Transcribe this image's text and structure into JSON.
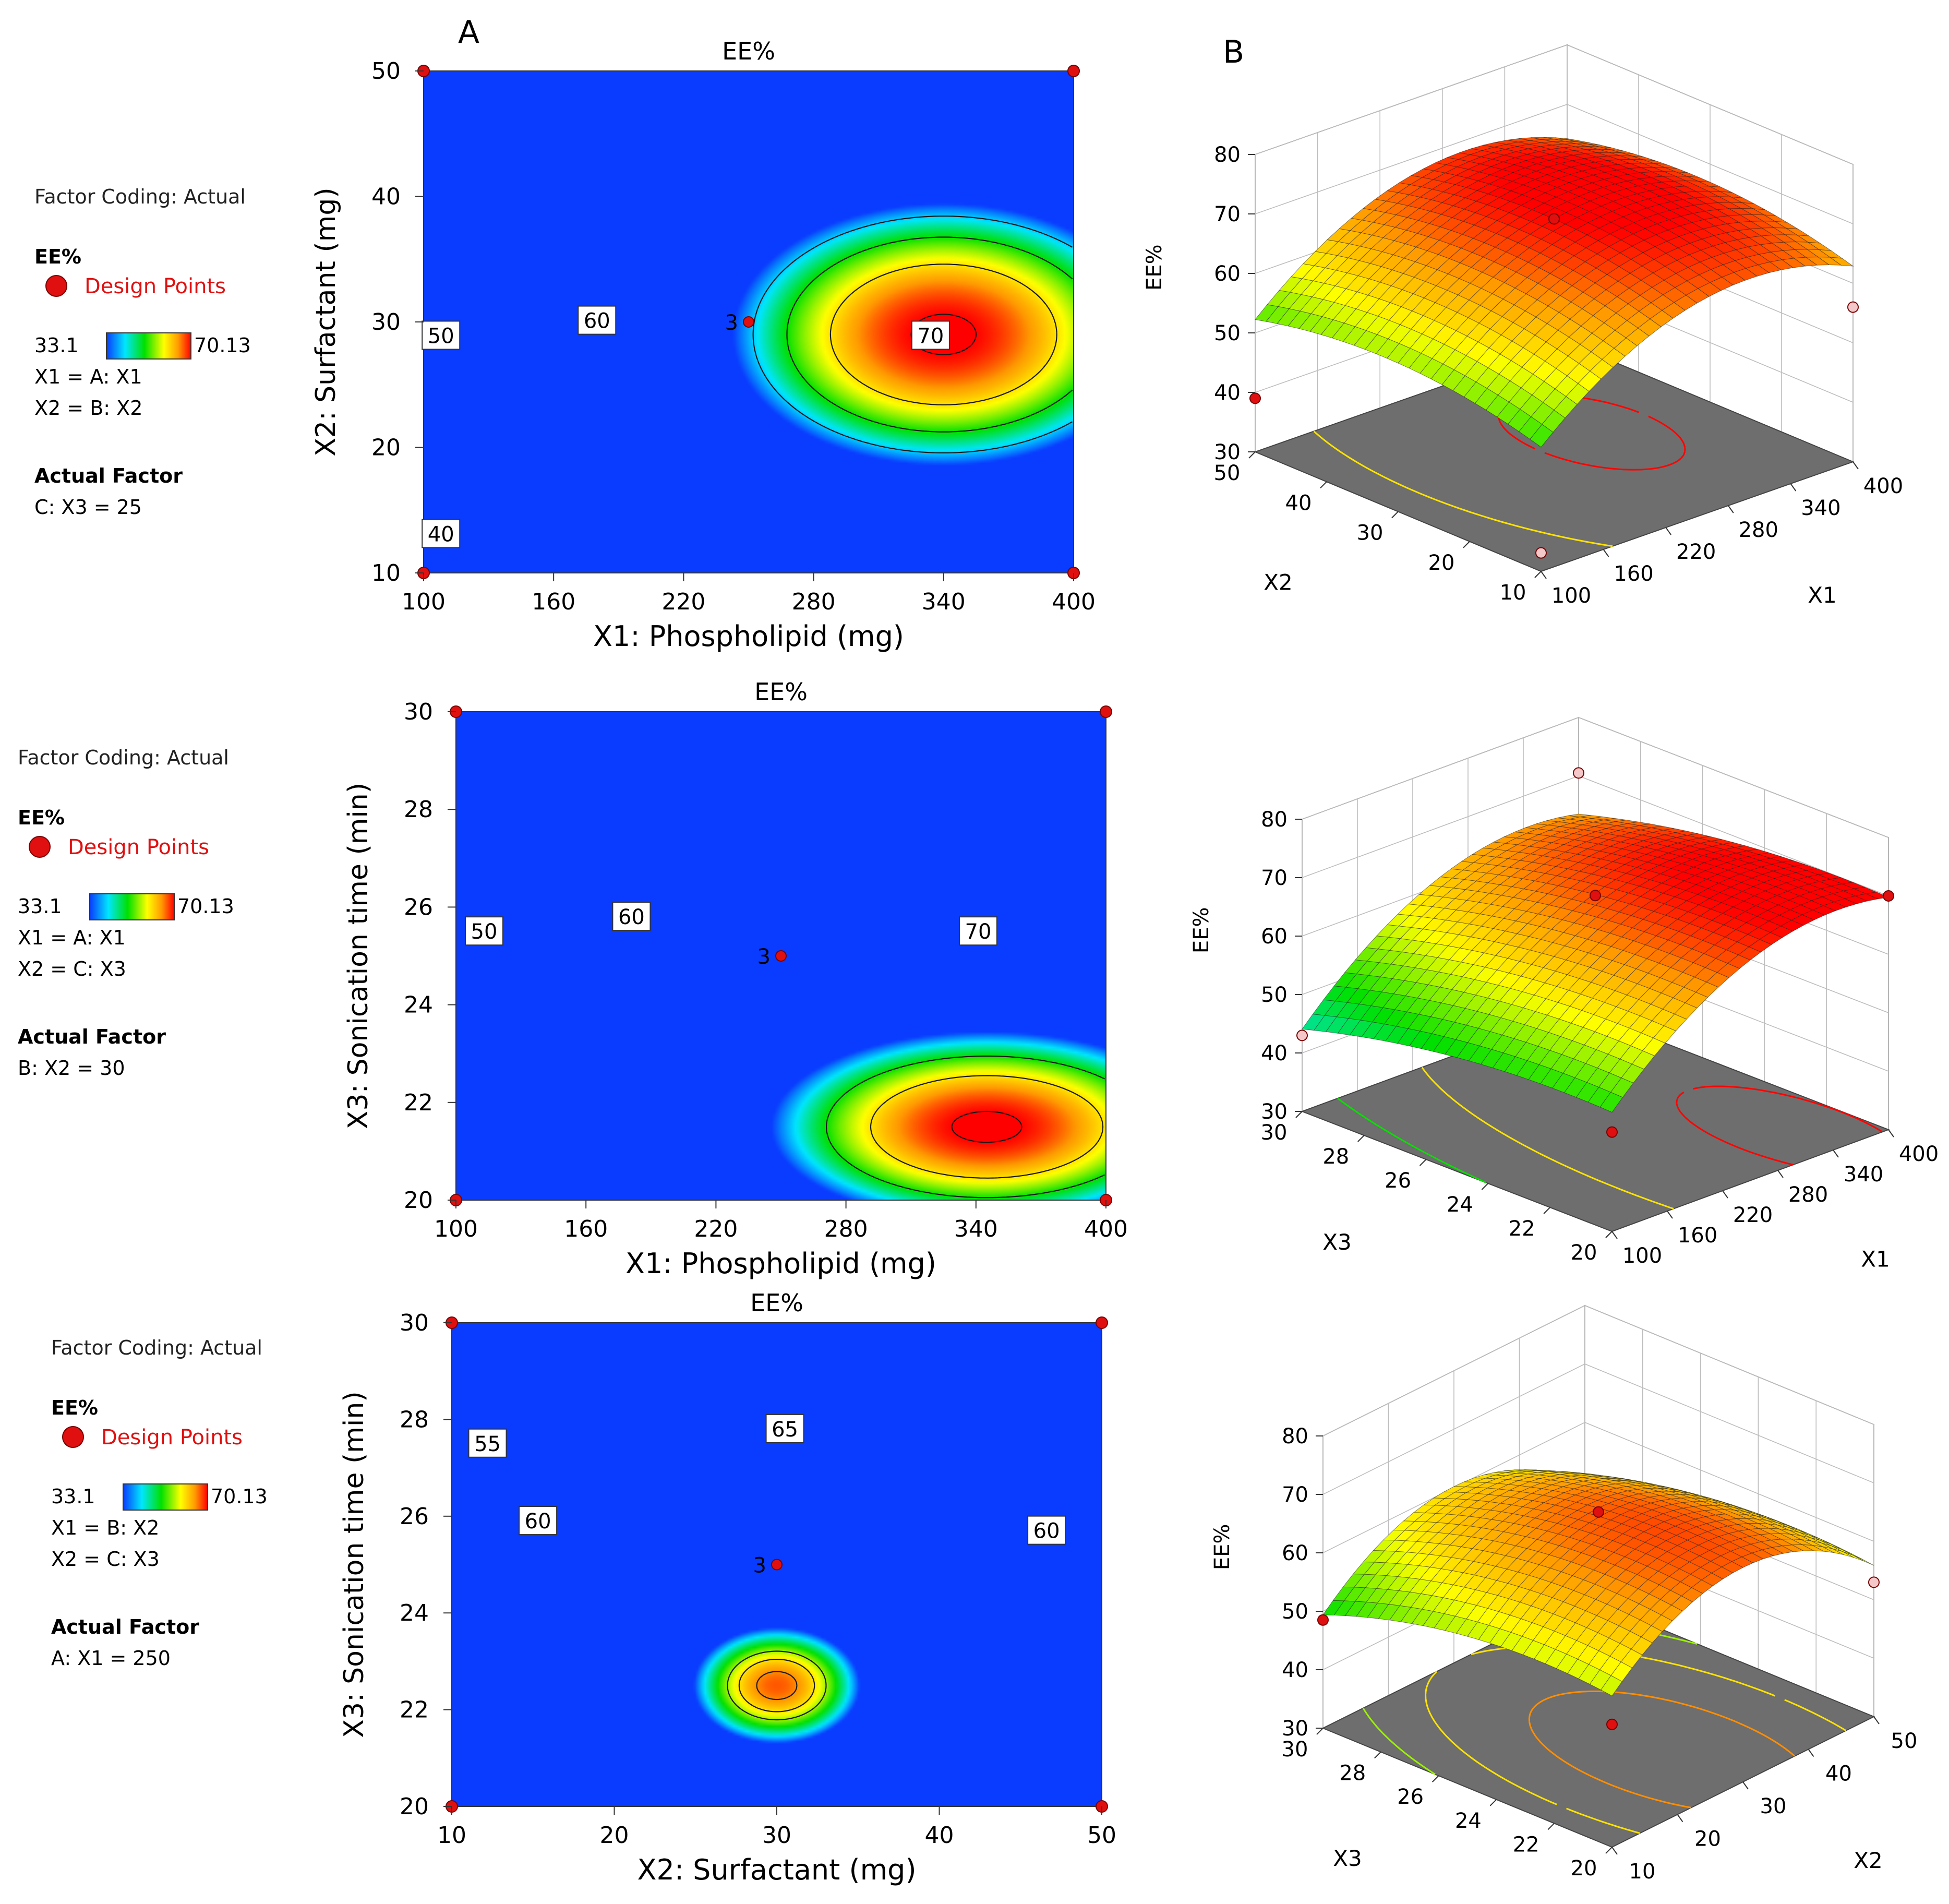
{
  "figure": {
    "panel_labels": [
      "A",
      "B"
    ]
  },
  "colors": {
    "ramp": [
      "#0a3cff",
      "#00e6ff",
      "#00e000",
      "#ffff00",
      "#ff9a00",
      "#ff0000"
    ],
    "design_point": "#e01010",
    "design_point_light": "#f4c8c8",
    "floor": "#6e6e6e",
    "grid": "#bdbdbd"
  },
  "chart_data": [
    {
      "type": "contour",
      "title": "EE%",
      "xlabel": "X1: Phospholipid (mg)",
      "ylabel": "X2: Surfactant (mg)",
      "xlim": [
        100,
        400
      ],
      "ylim": [
        10,
        50
      ],
      "xticks": [
        "100",
        "160",
        "220",
        "280",
        "340",
        "400"
      ],
      "yticks": [
        "10",
        "20",
        "30",
        "40",
        "50"
      ],
      "model": {
        "peak": 70.9,
        "x_opt": 340,
        "y_opt": 29,
        "ax": 27.8,
        "ay": 18.0
      },
      "contour_levels": [
        40,
        50,
        60,
        70
      ],
      "contour_labels": [
        {
          "text": "40",
          "x": 108,
          "y": 13.1
        },
        {
          "text": "50",
          "x": 108,
          "y": 28.9
        },
        {
          "text": "60",
          "x": 180,
          "y": 30.1
        },
        {
          "text": "70",
          "x": 334,
          "y": 28.9
        }
      ],
      "design_points": [
        {
          "x": 100,
          "y": 10
        },
        {
          "x": 100,
          "y": 50
        },
        {
          "x": 400,
          "y": 10
        },
        {
          "x": 400,
          "y": 50
        }
      ],
      "center_point": {
        "x": 250,
        "y": 30,
        "label": "3"
      },
      "legend": {
        "coding": "Factor Coding: Actual",
        "response": "EE%",
        "design_points": "Design Points",
        "low": "33.1",
        "high": "70.13",
        "map1": "X1 = A: X1",
        "map2": "X2 = B: X2",
        "actual_factor_title": "Actual Factor",
        "actual_factor": "C: X3 = 25"
      }
    },
    {
      "type": "contour",
      "title": "EE%",
      "xlabel": "X1: Phospholipid (mg)",
      "ylabel": "X3: Sonication time (min)",
      "xlim": [
        100,
        400
      ],
      "ylim": [
        20,
        30
      ],
      "xticks": [
        "100",
        "160",
        "220",
        "280",
        "340",
        "400"
      ],
      "yticks": [
        "20",
        "22",
        "24",
        "26",
        "28",
        "30"
      ],
      "model": {
        "peak": 71.0,
        "x_opt": 345,
        "y_opt": 21.5,
        "ax": 29.0,
        "ay": 10.0
      },
      "contour_levels": [
        50,
        60,
        70
      ],
      "contour_labels": [
        {
          "text": "50",
          "x": 113,
          "y": 25.5
        },
        {
          "text": "60",
          "x": 181,
          "y": 25.8
        },
        {
          "text": "70",
          "x": 341,
          "y": 25.5
        }
      ],
      "design_points": [
        {
          "x": 100,
          "y": 20
        },
        {
          "x": 100,
          "y": 30
        },
        {
          "x": 400,
          "y": 20
        },
        {
          "x": 400,
          "y": 30
        }
      ],
      "center_point": {
        "x": 250,
        "y": 25,
        "label": "3"
      },
      "legend": {
        "coding": "Factor Coding: Actual",
        "response": "EE%",
        "design_points": "Design Points",
        "low": "33.1",
        "high": "70.13",
        "map1": "X1 = A: X1",
        "map2": "X2 = C: X3",
        "actual_factor_title": "Actual Factor",
        "actual_factor": "B: X2 = 30"
      }
    },
    {
      "type": "contour",
      "title": "EE%",
      "xlabel": "X2: Surfactant (mg)",
      "ylabel": "X3: Sonication time (min)",
      "xlim": [
        10,
        50
      ],
      "ylim": [
        20,
        30
      ],
      "xticks": [
        "10",
        "20",
        "30",
        "40",
        "50"
      ],
      "yticks": [
        "20",
        "22",
        "24",
        "26",
        "28",
        "30"
      ],
      "model": {
        "peak": 67.0,
        "x_opt": 30,
        "y_opt": 22.5,
        "ax": 4.8,
        "ay": 4.2
      },
      "contour_levels": [
        55,
        60,
        65
      ],
      "contour_labels": [
        {
          "text": "55",
          "x": 12.2,
          "y": 27.5
        },
        {
          "text": "60",
          "x": 15.3,
          "y": 25.9
        },
        {
          "text": "65",
          "x": 30.5,
          "y": 27.8
        },
        {
          "text": "60",
          "x": 46.6,
          "y": 25.7
        }
      ],
      "design_points": [
        {
          "x": 10,
          "y": 20
        },
        {
          "x": 10,
          "y": 30
        },
        {
          "x": 50,
          "y": 20
        },
        {
          "x": 50,
          "y": 30
        }
      ],
      "center_point": {
        "x": 30,
        "y": 25,
        "label": "3"
      },
      "legend": {
        "coding": "Factor Coding: Actual",
        "response": "EE%",
        "design_points": "Design Points",
        "low": "33.1",
        "high": "70.13",
        "map1": "X1 = B: X2",
        "map2": "X2 = C: X3",
        "actual_factor_title": "Actual Factor",
        "actual_factor": "A: X1 = 250"
      }
    },
    {
      "type": "surface3d",
      "zlabel": "EE%",
      "xlabel": "X1",
      "ylabel": "X2",
      "xlim": [
        100,
        400
      ],
      "ylim": [
        10,
        50
      ],
      "zlim": [
        30,
        80
      ],
      "xticks": [
        "100",
        "160",
        "220",
        "280",
        "340",
        "400"
      ],
      "yticks": [
        "10",
        "20",
        "30",
        "40",
        "50"
      ],
      "zticks": [
        "30",
        "40",
        "50",
        "60",
        "70",
        "80"
      ],
      "surface": {
        "peak": 71.0,
        "x_opt": 300,
        "y_opt": 32,
        "ax": 0.0004,
        "ay": 0.0085,
        "min_z": 33.1
      },
      "floor_levels": [
        40,
        50,
        60,
        70
      ],
      "design_points": [
        {
          "x": 100,
          "y": 10,
          "z": 33.1,
          "light": true
        },
        {
          "x": 100,
          "y": 50,
          "z": 39.0
        },
        {
          "x": 400,
          "y": 10,
          "z": 56.0,
          "light": true
        },
        {
          "x": 250,
          "y": 30,
          "z": 70.0
        }
      ]
    },
    {
      "type": "surface3d",
      "zlabel": "EE%",
      "xlabel": "X1",
      "ylabel": "X3",
      "xlim": [
        100,
        400
      ],
      "ylim": [
        20,
        30
      ],
      "zlim": [
        30,
        80
      ],
      "xticks": [
        "100",
        "160",
        "220",
        "280",
        "340",
        "400"
      ],
      "yticks": [
        "20",
        "22",
        "24",
        "26",
        "28",
        "30"
      ],
      "zticks": [
        "30",
        "40",
        "50",
        "60",
        "70",
        "80"
      ],
      "surface": {
        "peak": 71.0,
        "x_opt": 345,
        "y_opt": 21.5,
        "ax": 0.00034,
        "ay": 0.09,
        "min_z": 33.1
      },
      "floor_levels": [
        50,
        60,
        70
      ],
      "design_points": [
        {
          "x": 100,
          "y": 30,
          "z": 43.0,
          "light": true
        },
        {
          "x": 400,
          "y": 20,
          "z": 70.0
        },
        {
          "x": 400,
          "y": 30,
          "z": 70.5,
          "light": true
        },
        {
          "x": 250,
          "y": 25,
          "z": 68.5
        },
        {
          "x": 100,
          "y": 20,
          "z": 47.0
        }
      ]
    },
    {
      "type": "surface3d",
      "zlabel": "EE%",
      "xlabel": "X2",
      "ylabel": "X3",
      "xlim": [
        10,
        50
      ],
      "ylim": [
        20,
        30
      ],
      "zlim": [
        30,
        80
      ],
      "xticks": [
        "10",
        "20",
        "30",
        "40",
        "50"
      ],
      "yticks": [
        "20",
        "22",
        "24",
        "26",
        "28",
        "30"
      ],
      "zticks": [
        "30",
        "40",
        "50",
        "60",
        "70",
        "80"
      ],
      "surface": {
        "peak": 67.5,
        "x_opt": 30,
        "y_opt": 22.5,
        "ax": 0.027,
        "ay": 0.13,
        "min_z": 33.1
      },
      "floor_levels": [
        55,
        60,
        65
      ],
      "design_points": [
        {
          "x": 10,
          "y": 30,
          "z": 48.5
        },
        {
          "x": 50,
          "y": 20,
          "z": 53.0,
          "light": true
        },
        {
          "x": 30,
          "y": 25,
          "z": 66.0
        },
        {
          "x": 10,
          "y": 20,
          "z": 51.0
        }
      ]
    }
  ]
}
